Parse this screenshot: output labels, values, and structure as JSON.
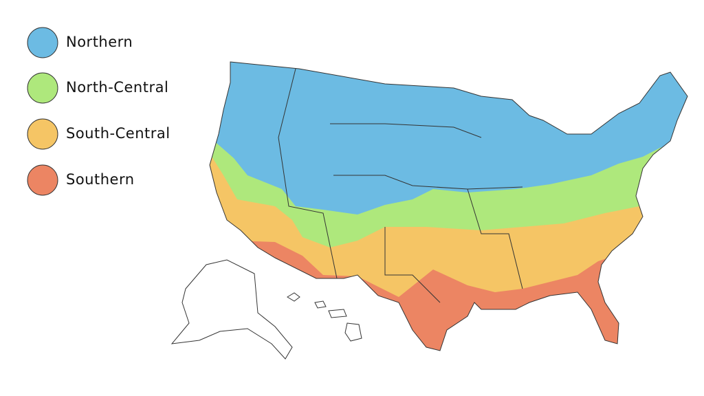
{
  "legend": [
    {
      "label": "Northern",
      "color": "#6cbbe3"
    },
    {
      "label": "North-Central",
      "color": "#aee87c"
    },
    {
      "label": "South-Central",
      "color": "#f5c565"
    },
    {
      "label": "Southern",
      "color": "#ec8563"
    }
  ]
}
